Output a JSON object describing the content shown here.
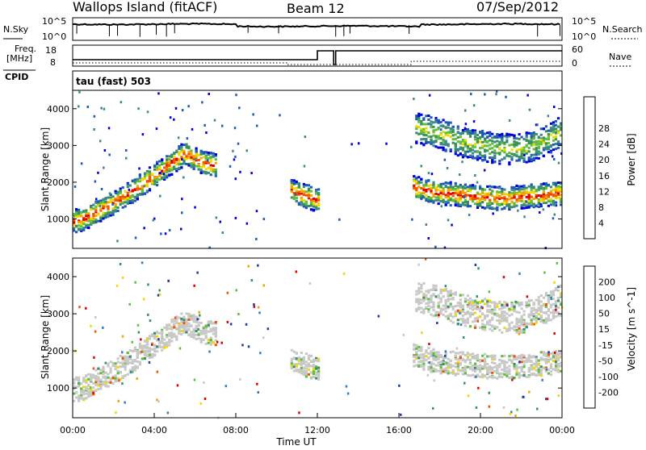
{
  "header": {
    "station": "Wallops Island (fitACF)",
    "beam": "Beam 12",
    "date": "07/Sep/2012"
  },
  "noise_panel": {
    "left_label": "N.Sky",
    "left_ticks": [
      "10^5",
      "10^0"
    ],
    "right_label": "N.Search",
    "right_ticks": [
      "10^5",
      "10^0"
    ]
  },
  "freq_panel": {
    "left_label_top": "Freq.",
    "left_label_unit": "[MHz]",
    "left_ticks": [
      "18",
      "8"
    ],
    "right_label": "Nave",
    "right_ticks": [
      "60",
      "0"
    ]
  },
  "cpid": {
    "label": "CPID",
    "value": "tau (fast) 503"
  },
  "chart_data": [
    {
      "type": "heatmap",
      "name": "power",
      "xlabel": "",
      "ylabel": "Slant Range [km]",
      "xlim": [
        0,
        24
      ],
      "ylim": [
        200,
        4500
      ],
      "yticks": [
        "1000",
        "2000",
        "3000",
        "4000"
      ],
      "colorbar": {
        "label": "Power [dB]",
        "ticks": [
          "4",
          "8",
          "12",
          "16",
          "20",
          "24",
          "28"
        ],
        "colors": [
          "#0000dd",
          "#1f5ab4",
          "#3b8a8a",
          "#3a8f5a",
          "#5fbf3a",
          "#f0d800",
          "#f5a300",
          "#ef5500",
          "#e00000"
        ]
      },
      "bands": [
        {
          "t": [
            0,
            0.5,
            1,
            2,
            3,
            4,
            5,
            5.5,
            6,
            6.5,
            7
          ],
          "r": [
            950,
            1000,
            1150,
            1450,
            1800,
            2200,
            2600,
            2800,
            2600,
            2500,
            2450
          ]
        },
        {
          "t": [
            10.6,
            11,
            11.5,
            12
          ],
          "r": [
            1800,
            1700,
            1600,
            1500
          ]
        },
        {
          "t": [
            16.6,
            17,
            18,
            19,
            20,
            21,
            22,
            23,
            24
          ],
          "r": [
            1900,
            1800,
            1700,
            1650,
            1600,
            1550,
            1600,
            1650,
            1700
          ]
        },
        {
          "t": [
            16.7,
            18,
            19,
            20,
            21,
            22,
            23,
            24
          ],
          "r": [
            3500,
            3300,
            3100,
            3000,
            2900,
            2900,
            3100,
            3400
          ]
        }
      ]
    },
    {
      "type": "heatmap",
      "name": "velocity",
      "xlabel": "Time UT",
      "ylabel": "Slant Range [km]",
      "xlim": [
        0,
        24
      ],
      "ylim": [
        200,
        4500
      ],
      "xticks": [
        "00:00",
        "04:00",
        "08:00",
        "12:00",
        "16:00",
        "20:00",
        "00:00"
      ],
      "yticks": [
        "1000",
        "2000",
        "3000",
        "4000"
      ],
      "colorbar": {
        "label": "Velocity [m s^-1]",
        "ticks": [
          "200",
          "100",
          "50",
          "15",
          "-15",
          "-50",
          "-100",
          "-200"
        ],
        "colors": [
          "#1f3ca0",
          "#3080c0",
          "#3a8f6a",
          "#5fbf3a",
          "#c8c8c8",
          "#f0d800",
          "#f5a300",
          "#ef5500",
          "#e00000"
        ]
      }
    }
  ]
}
